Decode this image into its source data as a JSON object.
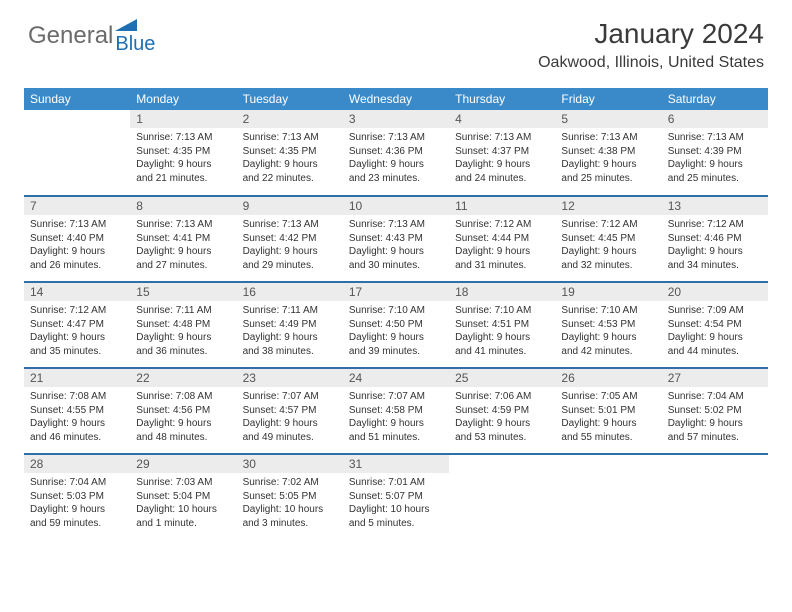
{
  "logo": {
    "left": "General",
    "right": "Blue"
  },
  "title": "January 2024",
  "location": "Oakwood, Illinois, United States",
  "colors": {
    "header_bg": "#3a8ac9",
    "header_text": "#ffffff",
    "rule": "#2f6fa8",
    "daynum_bg": "#ececec",
    "logo_gray": "#6b6b6b",
    "logo_blue": "#1f6fb2"
  },
  "dayHeaders": [
    "Sunday",
    "Monday",
    "Tuesday",
    "Wednesday",
    "Thursday",
    "Friday",
    "Saturday"
  ],
  "weeks": [
    [
      {
        "n": "",
        "l1": "",
        "l2": "",
        "l3": "",
        "l4": ""
      },
      {
        "n": "1",
        "l1": "Sunrise: 7:13 AM",
        "l2": "Sunset: 4:35 PM",
        "l3": "Daylight: 9 hours",
        "l4": "and 21 minutes."
      },
      {
        "n": "2",
        "l1": "Sunrise: 7:13 AM",
        "l2": "Sunset: 4:35 PM",
        "l3": "Daylight: 9 hours",
        "l4": "and 22 minutes."
      },
      {
        "n": "3",
        "l1": "Sunrise: 7:13 AM",
        "l2": "Sunset: 4:36 PM",
        "l3": "Daylight: 9 hours",
        "l4": "and 23 minutes."
      },
      {
        "n": "4",
        "l1": "Sunrise: 7:13 AM",
        "l2": "Sunset: 4:37 PM",
        "l3": "Daylight: 9 hours",
        "l4": "and 24 minutes."
      },
      {
        "n": "5",
        "l1": "Sunrise: 7:13 AM",
        "l2": "Sunset: 4:38 PM",
        "l3": "Daylight: 9 hours",
        "l4": "and 25 minutes."
      },
      {
        "n": "6",
        "l1": "Sunrise: 7:13 AM",
        "l2": "Sunset: 4:39 PM",
        "l3": "Daylight: 9 hours",
        "l4": "and 25 minutes."
      }
    ],
    [
      {
        "n": "7",
        "l1": "Sunrise: 7:13 AM",
        "l2": "Sunset: 4:40 PM",
        "l3": "Daylight: 9 hours",
        "l4": "and 26 minutes."
      },
      {
        "n": "8",
        "l1": "Sunrise: 7:13 AM",
        "l2": "Sunset: 4:41 PM",
        "l3": "Daylight: 9 hours",
        "l4": "and 27 minutes."
      },
      {
        "n": "9",
        "l1": "Sunrise: 7:13 AM",
        "l2": "Sunset: 4:42 PM",
        "l3": "Daylight: 9 hours",
        "l4": "and 29 minutes."
      },
      {
        "n": "10",
        "l1": "Sunrise: 7:13 AM",
        "l2": "Sunset: 4:43 PM",
        "l3": "Daylight: 9 hours",
        "l4": "and 30 minutes."
      },
      {
        "n": "11",
        "l1": "Sunrise: 7:12 AM",
        "l2": "Sunset: 4:44 PM",
        "l3": "Daylight: 9 hours",
        "l4": "and 31 minutes."
      },
      {
        "n": "12",
        "l1": "Sunrise: 7:12 AM",
        "l2": "Sunset: 4:45 PM",
        "l3": "Daylight: 9 hours",
        "l4": "and 32 minutes."
      },
      {
        "n": "13",
        "l1": "Sunrise: 7:12 AM",
        "l2": "Sunset: 4:46 PM",
        "l3": "Daylight: 9 hours",
        "l4": "and 34 minutes."
      }
    ],
    [
      {
        "n": "14",
        "l1": "Sunrise: 7:12 AM",
        "l2": "Sunset: 4:47 PM",
        "l3": "Daylight: 9 hours",
        "l4": "and 35 minutes."
      },
      {
        "n": "15",
        "l1": "Sunrise: 7:11 AM",
        "l2": "Sunset: 4:48 PM",
        "l3": "Daylight: 9 hours",
        "l4": "and 36 minutes."
      },
      {
        "n": "16",
        "l1": "Sunrise: 7:11 AM",
        "l2": "Sunset: 4:49 PM",
        "l3": "Daylight: 9 hours",
        "l4": "and 38 minutes."
      },
      {
        "n": "17",
        "l1": "Sunrise: 7:10 AM",
        "l2": "Sunset: 4:50 PM",
        "l3": "Daylight: 9 hours",
        "l4": "and 39 minutes."
      },
      {
        "n": "18",
        "l1": "Sunrise: 7:10 AM",
        "l2": "Sunset: 4:51 PM",
        "l3": "Daylight: 9 hours",
        "l4": "and 41 minutes."
      },
      {
        "n": "19",
        "l1": "Sunrise: 7:10 AM",
        "l2": "Sunset: 4:53 PM",
        "l3": "Daylight: 9 hours",
        "l4": "and 42 minutes."
      },
      {
        "n": "20",
        "l1": "Sunrise: 7:09 AM",
        "l2": "Sunset: 4:54 PM",
        "l3": "Daylight: 9 hours",
        "l4": "and 44 minutes."
      }
    ],
    [
      {
        "n": "21",
        "l1": "Sunrise: 7:08 AM",
        "l2": "Sunset: 4:55 PM",
        "l3": "Daylight: 9 hours",
        "l4": "and 46 minutes."
      },
      {
        "n": "22",
        "l1": "Sunrise: 7:08 AM",
        "l2": "Sunset: 4:56 PM",
        "l3": "Daylight: 9 hours",
        "l4": "and 48 minutes."
      },
      {
        "n": "23",
        "l1": "Sunrise: 7:07 AM",
        "l2": "Sunset: 4:57 PM",
        "l3": "Daylight: 9 hours",
        "l4": "and 49 minutes."
      },
      {
        "n": "24",
        "l1": "Sunrise: 7:07 AM",
        "l2": "Sunset: 4:58 PM",
        "l3": "Daylight: 9 hours",
        "l4": "and 51 minutes."
      },
      {
        "n": "25",
        "l1": "Sunrise: 7:06 AM",
        "l2": "Sunset: 4:59 PM",
        "l3": "Daylight: 9 hours",
        "l4": "and 53 minutes."
      },
      {
        "n": "26",
        "l1": "Sunrise: 7:05 AM",
        "l2": "Sunset: 5:01 PM",
        "l3": "Daylight: 9 hours",
        "l4": "and 55 minutes."
      },
      {
        "n": "27",
        "l1": "Sunrise: 7:04 AM",
        "l2": "Sunset: 5:02 PM",
        "l3": "Daylight: 9 hours",
        "l4": "and 57 minutes."
      }
    ],
    [
      {
        "n": "28",
        "l1": "Sunrise: 7:04 AM",
        "l2": "Sunset: 5:03 PM",
        "l3": "Daylight: 9 hours",
        "l4": "and 59 minutes."
      },
      {
        "n": "29",
        "l1": "Sunrise: 7:03 AM",
        "l2": "Sunset: 5:04 PM",
        "l3": "Daylight: 10 hours",
        "l4": "and 1 minute."
      },
      {
        "n": "30",
        "l1": "Sunrise: 7:02 AM",
        "l2": "Sunset: 5:05 PM",
        "l3": "Daylight: 10 hours",
        "l4": "and 3 minutes."
      },
      {
        "n": "31",
        "l1": "Sunrise: 7:01 AM",
        "l2": "Sunset: 5:07 PM",
        "l3": "Daylight: 10 hours",
        "l4": "and 5 minutes."
      },
      {
        "n": "",
        "l1": "",
        "l2": "",
        "l3": "",
        "l4": ""
      },
      {
        "n": "",
        "l1": "",
        "l2": "",
        "l3": "",
        "l4": ""
      },
      {
        "n": "",
        "l1": "",
        "l2": "",
        "l3": "",
        "l4": ""
      }
    ]
  ]
}
